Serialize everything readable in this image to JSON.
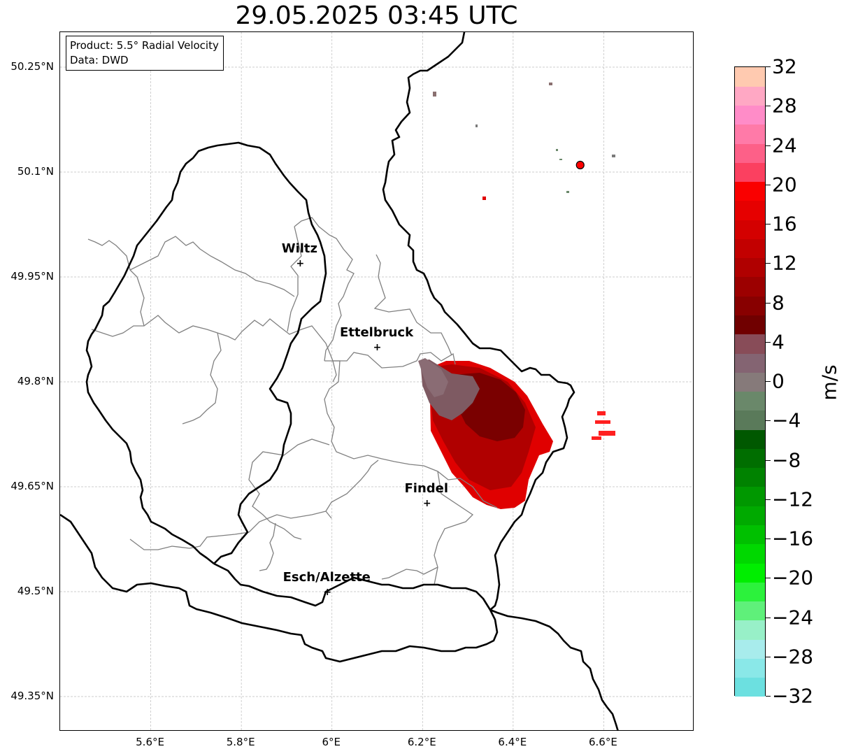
{
  "title": "29.05.2025 03:45 UTC",
  "info": {
    "product": "Product: 5.5° Radial Velocity",
    "data": "Data: DWD"
  },
  "axes": {
    "lon_ticks": [
      "5.6°E",
      "5.8°E",
      "6°E",
      "6.2°E",
      "6.4°E",
      "6.6°E"
    ],
    "lat_ticks": [
      "50.25°N",
      "50.1°N",
      "49.95°N",
      "49.8°N",
      "49.65°N",
      "49.5°N",
      "49.35°N"
    ],
    "lon_values": [
      5.6,
      5.8,
      6.0,
      6.2,
      6.4,
      6.6
    ],
    "lat_values": [
      50.25,
      50.1,
      49.95,
      49.8,
      49.65,
      49.5,
      49.35
    ],
    "lon_range": [
      5.4,
      6.8
    ],
    "lat_range": [
      49.3,
      50.3
    ],
    "grid": true
  },
  "cities": [
    {
      "name": "Wiltz",
      "lon": 5.93,
      "lat": 49.97
    },
    {
      "name": "Ettelbruck",
      "lon": 6.1,
      "lat": 49.85
    },
    {
      "name": "Findel",
      "lon": 6.21,
      "lat": 49.627
    },
    {
      "name": "Esch/Alzette",
      "lon": 5.99,
      "lat": 49.5
    }
  ],
  "radar_site": {
    "lon": 6.548,
    "lat": 50.11,
    "color": "#ff0000"
  },
  "colorbar": {
    "label": "m/s",
    "min": -32,
    "max": 32,
    "ticks": [
      "32",
      "28",
      "24",
      "20",
      "16",
      "12",
      "8",
      "4",
      "0",
      "−4",
      "−8",
      "−12",
      "−16",
      "−20",
      "−24",
      "−28",
      "−32"
    ],
    "colors": [
      "#6ce0e0",
      "#8ae8e8",
      "#a8ecec",
      "#98f0c8",
      "#5ff07a",
      "#2cf23c",
      "#00ee00",
      "#00d800",
      "#00c000",
      "#00aa00",
      "#009800",
      "#008200",
      "#006e00",
      "#005800",
      "#5a7a5a",
      "#6a886a",
      "#867a7a",
      "#846472",
      "#884c58",
      "#700000",
      "#880000",
      "#9c0000",
      "#b00000",
      "#c20000",
      "#d40000",
      "#e60000",
      "#fa0000",
      "#fb4060",
      "#fd6088",
      "#ff7aa8",
      "#ff8cc8",
      "#ffa8c4",
      "#ffcab0"
    ]
  },
  "styles": {
    "border_color": "#000000",
    "canton_color": "#808080",
    "grid_color": "#bdbdbd"
  }
}
